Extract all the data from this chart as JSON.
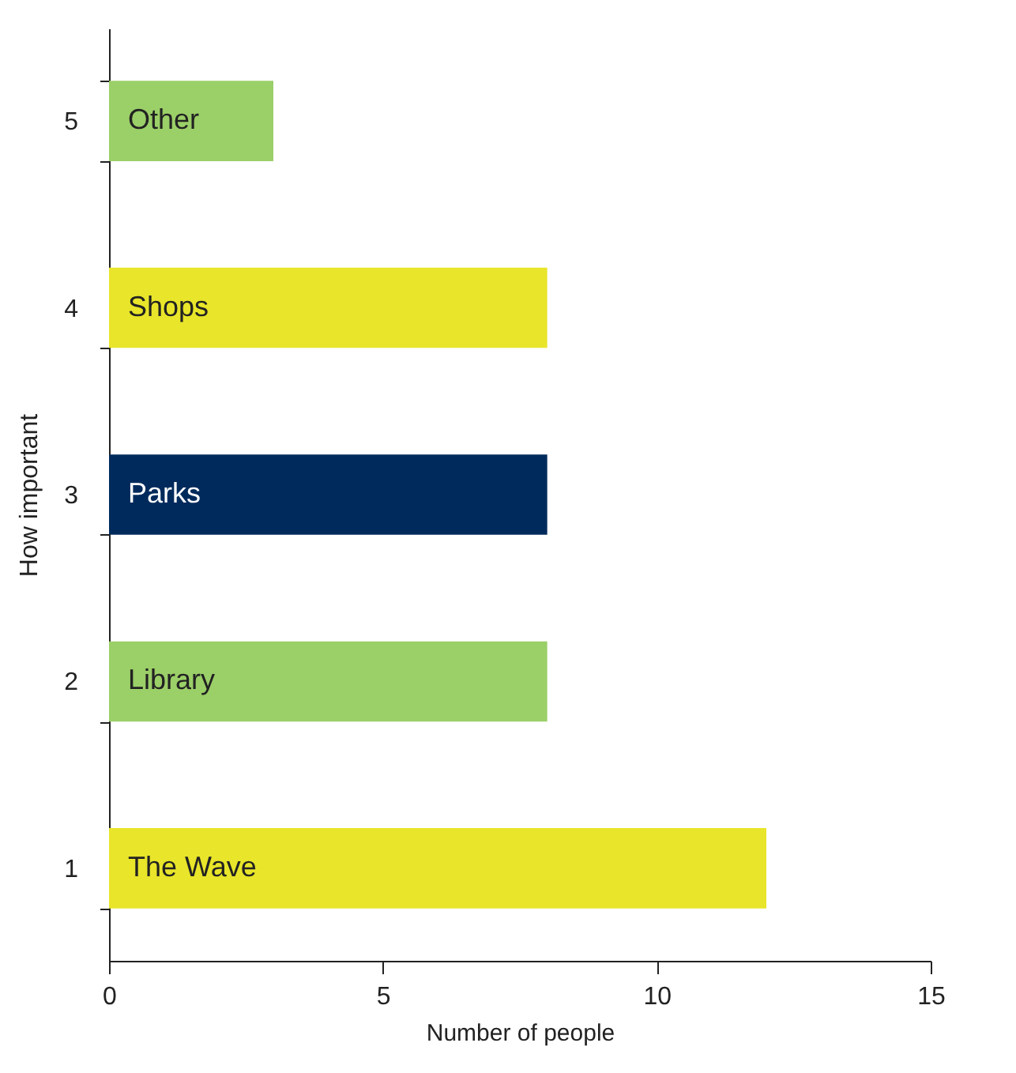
{
  "chart_data": {
    "type": "bar",
    "orientation": "horizontal",
    "categories": [
      "5",
      "4",
      "3",
      "2",
      "1"
    ],
    "values": [
      3,
      8,
      8,
      8,
      12
    ],
    "colors": [
      "#9bcf68",
      "#e8e52a",
      "#002a5c",
      "#9bcf68",
      "#e8e52a"
    ],
    "xlabel": "Number of people",
    "ylabel": "How important",
    "xlim": [
      0,
      15
    ],
    "xticks": [
      0,
      5,
      10,
      15
    ],
    "grid": false,
    "annotations": [
      "Other",
      "Shops",
      "Parks",
      "Library",
      "The Wave"
    ]
  }
}
